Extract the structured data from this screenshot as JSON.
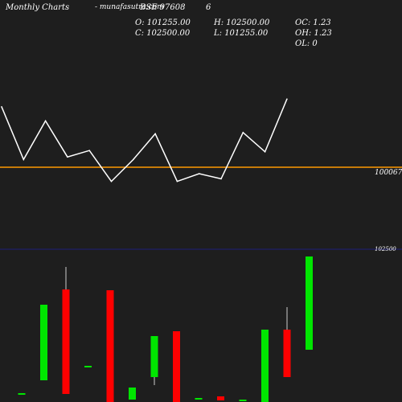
{
  "header": {
    "brand": "Monthly Charts",
    "symbol_title": "-  munafasutra.com",
    "exchange_code": "BSE 97608",
    "right_number": "6"
  },
  "ohlc": {
    "open": "O: 101255.00",
    "high": "H: 102500.00",
    "oc": "OC: 1.23",
    "close": "C: 102500.00",
    "low": "L: 101255.00",
    "oh": "OH: 1.23",
    "ol": "OL: 0"
  },
  "colors": {
    "background": "#1e1e1e",
    "line": "#ffffff",
    "reference_line": "#ff9900",
    "up": "#00e600",
    "down": "#ff0000",
    "marker_line": "#1e1e7a",
    "text": "#ffffff"
  },
  "chart_data": [
    {
      "type": "line",
      "title": "",
      "series": [
        {
          "values": [
            47,
            6,
            36,
            8,
            13,
            -11,
            6,
            26,
            -11,
            -5,
            -9,
            27,
            12,
            53
          ]
        }
      ],
      "reference_line": {
        "value": 100067,
        "label": "100067"
      },
      "grid": false
    },
    {
      "type": "candlestick",
      "marker_line": {
        "value": 102500,
        "label": "102500"
      },
      "candles": [
        {
          "open": 8,
          "close": 8,
          "high": 8,
          "low": 8
        },
        {
          "open": 24,
          "close": 118,
          "high": 118,
          "low": 24
        },
        {
          "open": 137,
          "close": 7,
          "high": 165,
          "low": 7
        },
        {
          "open": 42,
          "close": 42,
          "high": 42,
          "low": 42
        },
        {
          "open": 136,
          "close": -5,
          "high": 136,
          "low": -5
        },
        {
          "open": 0,
          "close": 15,
          "high": 15,
          "low": 0
        },
        {
          "open": 28,
          "close": 79,
          "high": 79,
          "low": 18
        },
        {
          "open": 85,
          "close": -5,
          "high": 85,
          "low": -5
        },
        {
          "open": 2,
          "close": 2,
          "high": 2,
          "low": 2
        },
        {
          "open": 4,
          "close": -1,
          "high": 4,
          "low": -1
        },
        {
          "open": 0,
          "close": 0,
          "high": 0,
          "low": 0
        },
        {
          "open": -5,
          "close": 87,
          "high": 87,
          "low": -5
        },
        {
          "open": 87,
          "close": 28,
          "high": 115,
          "low": 28
        },
        {
          "open": 62,
          "close": 178,
          "high": 178,
          "low": 62
        }
      ]
    }
  ]
}
